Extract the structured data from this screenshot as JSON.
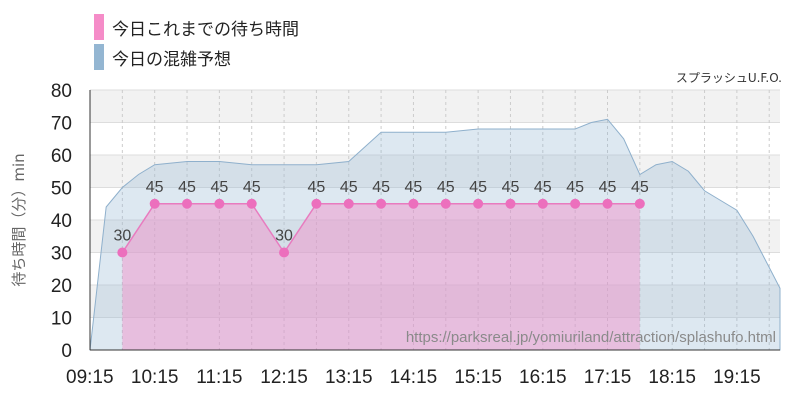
{
  "chart_data": {
    "type": "area",
    "subtitle": "スプラッシュU.F.O.",
    "ylabel": "待ち時間（分）min",
    "watermark": "https://parksreal.jp/yomiuriland/attraction/splashufo.html",
    "ylim": [
      0,
      80
    ],
    "yticks": [
      0,
      10,
      20,
      30,
      40,
      50,
      60,
      70,
      80
    ],
    "xlim": [
      "09:15",
      "19:55"
    ],
    "xticks": [
      "09:15",
      "10:15",
      "11:15",
      "12:15",
      "13:15",
      "14:15",
      "15:15",
      "16:15",
      "17:15",
      "18:15",
      "19:15"
    ],
    "grid": true,
    "legend_position": "top-left",
    "series": [
      {
        "name": "今日これまでの待ち時間",
        "color": "#f58cc8",
        "points": [
          {
            "time": "09:45",
            "value": 30
          },
          {
            "time": "10:15",
            "value": 45
          },
          {
            "time": "10:45",
            "value": 45
          },
          {
            "time": "11:15",
            "value": 45
          },
          {
            "time": "11:45",
            "value": 45
          },
          {
            "time": "12:15",
            "value": 30
          },
          {
            "time": "12:45",
            "value": 45
          },
          {
            "time": "13:15",
            "value": 45
          },
          {
            "time": "13:45",
            "value": 45
          },
          {
            "time": "14:15",
            "value": 45
          },
          {
            "time": "14:45",
            "value": 45
          },
          {
            "time": "15:15",
            "value": 45
          },
          {
            "time": "15:45",
            "value": 45
          },
          {
            "time": "16:15",
            "value": 45
          },
          {
            "time": "16:45",
            "value": 45
          },
          {
            "time": "17:15",
            "value": 45
          },
          {
            "time": "17:45",
            "value": 45
          }
        ]
      },
      {
        "name": "今日の混雑予想",
        "color": "#94b6d2",
        "points": [
          {
            "time": "09:15",
            "value": 0
          },
          {
            "time": "09:30",
            "value": 44
          },
          {
            "time": "09:45",
            "value": 50
          },
          {
            "time": "10:00",
            "value": 54
          },
          {
            "time": "10:15",
            "value": 57
          },
          {
            "time": "10:45",
            "value": 58
          },
          {
            "time": "11:15",
            "value": 58
          },
          {
            "time": "11:45",
            "value": 57
          },
          {
            "time": "12:15",
            "value": 57
          },
          {
            "time": "12:45",
            "value": 57
          },
          {
            "time": "13:15",
            "value": 58
          },
          {
            "time": "13:45",
            "value": 67
          },
          {
            "time": "14:15",
            "value": 67
          },
          {
            "time": "14:45",
            "value": 67
          },
          {
            "time": "15:15",
            "value": 68
          },
          {
            "time": "15:45",
            "value": 68
          },
          {
            "time": "16:15",
            "value": 68
          },
          {
            "time": "16:45",
            "value": 68
          },
          {
            "time": "17:00",
            "value": 70
          },
          {
            "time": "17:15",
            "value": 71
          },
          {
            "time": "17:30",
            "value": 65
          },
          {
            "time": "17:45",
            "value": 54
          },
          {
            "time": "18:00",
            "value": 57
          },
          {
            "time": "18:15",
            "value": 58
          },
          {
            "time": "18:30",
            "value": 55
          },
          {
            "time": "18:45",
            "value": 49
          },
          {
            "time": "19:00",
            "value": 46
          },
          {
            "time": "19:15",
            "value": 43
          },
          {
            "time": "19:30",
            "value": 35
          },
          {
            "time": "19:55",
            "value": 19
          }
        ]
      }
    ]
  }
}
